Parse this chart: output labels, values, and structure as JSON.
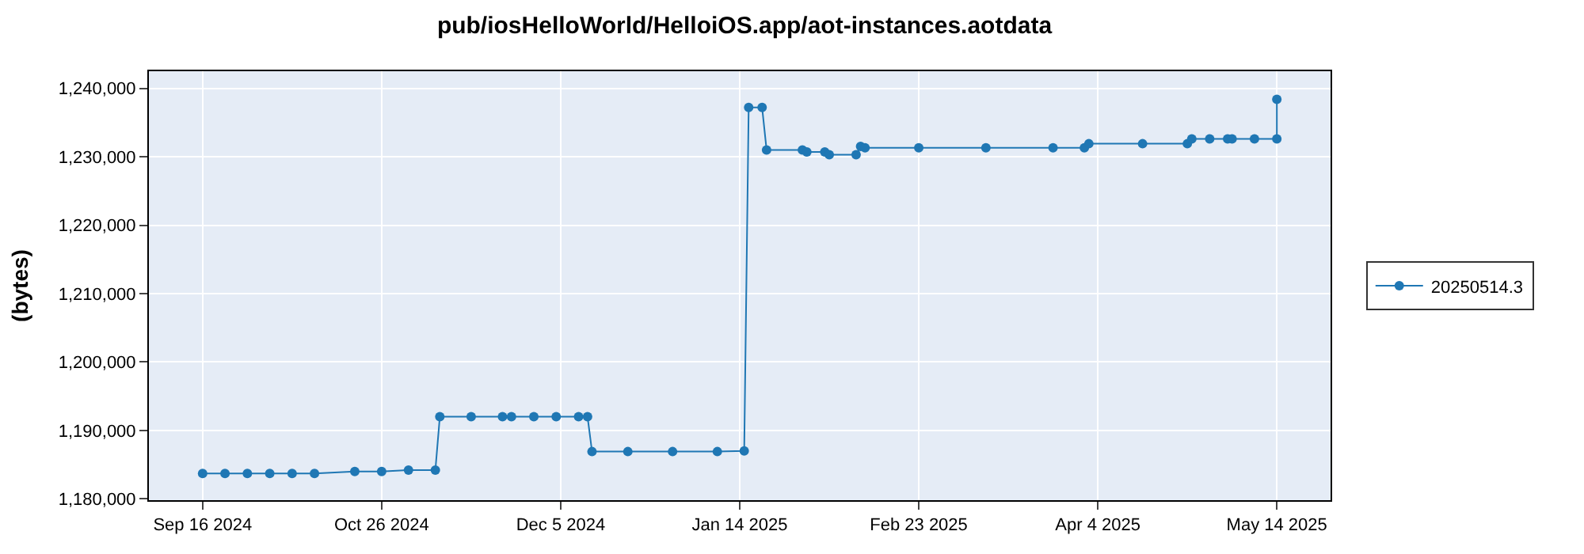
{
  "chart_data": {
    "type": "line",
    "title": "pub/iosHelloWorld/HelloiOS.app/aot-instances.aotdata",
    "ylabel": "(bytes)",
    "x": [
      "2024-09-16",
      "2024-09-21",
      "2024-09-26",
      "2024-10-01",
      "2024-10-06",
      "2024-10-11",
      "2024-10-20",
      "2024-10-26",
      "2024-11-01",
      "2024-11-07",
      "2024-11-08",
      "2024-11-15",
      "2024-11-22",
      "2024-11-24",
      "2024-11-29",
      "2024-12-04",
      "2024-12-09",
      "2024-12-11",
      "2024-12-12",
      "2024-12-20",
      "2024-12-30",
      "2025-01-09",
      "2025-01-15",
      "2025-01-16",
      "2025-01-19",
      "2025-01-20",
      "2025-01-28",
      "2025-01-29",
      "2025-02-02",
      "2025-02-03",
      "2025-02-09",
      "2025-02-10",
      "2025-02-11",
      "2025-02-23",
      "2025-03-10",
      "2025-03-25",
      "2025-04-01",
      "2025-04-02",
      "2025-04-14",
      "2025-04-24",
      "2025-04-25",
      "2025-04-29",
      "2025-05-03",
      "2025-05-04",
      "2025-05-09",
      "2025-05-14",
      "2025-05-14"
    ],
    "series": [
      {
        "name": "20250514.3",
        "color": "#1f77b4",
        "values": [
          1183700,
          1183700,
          1183700,
          1183700,
          1183700,
          1183700,
          1184000,
          1184000,
          1184200,
          1184200,
          1192000,
          1192000,
          1192000,
          1192000,
          1192000,
          1192000,
          1192000,
          1192000,
          1186900,
          1186900,
          1186900,
          1186900,
          1187000,
          1237200,
          1237200,
          1231000,
          1231000,
          1230700,
          1230700,
          1230300,
          1230300,
          1231500,
          1231300,
          1231300,
          1231300,
          1231300,
          1231300,
          1231900,
          1231900,
          1231900,
          1232600,
          1232600,
          1232600,
          1232600,
          1232600,
          1232600,
          1238400
        ]
      }
    ],
    "xlim": [
      "2024-09-04",
      "2025-05-26"
    ],
    "xticks": [
      {
        "value": "2024-09-16",
        "label": "Sep 16 2024"
      },
      {
        "value": "2024-10-26",
        "label": "Oct 26 2024"
      },
      {
        "value": "2024-12-05",
        "label": "Dec 5 2024"
      },
      {
        "value": "2025-01-14",
        "label": "Jan 14 2025"
      },
      {
        "value": "2025-02-23",
        "label": "Feb 23 2025"
      },
      {
        "value": "2025-04-04",
        "label": "Apr 4 2025"
      },
      {
        "value": "2025-05-14",
        "label": "May 14 2025"
      }
    ],
    "ylim": [
      1179800,
      1242500
    ],
    "yticks": [
      {
        "value": 1180000,
        "label": "1,180,000"
      },
      {
        "value": 1190000,
        "label": "1,190,000"
      },
      {
        "value": 1200000,
        "label": "1,200,000"
      },
      {
        "value": 1210000,
        "label": "1,210,000"
      },
      {
        "value": 1220000,
        "label": "1,220,000"
      },
      {
        "value": 1230000,
        "label": "1,230,000"
      },
      {
        "value": 1240000,
        "label": "1,240,000"
      }
    ],
    "grid": true,
    "legend": "right",
    "marker": "circle",
    "line_style": "solid"
  }
}
